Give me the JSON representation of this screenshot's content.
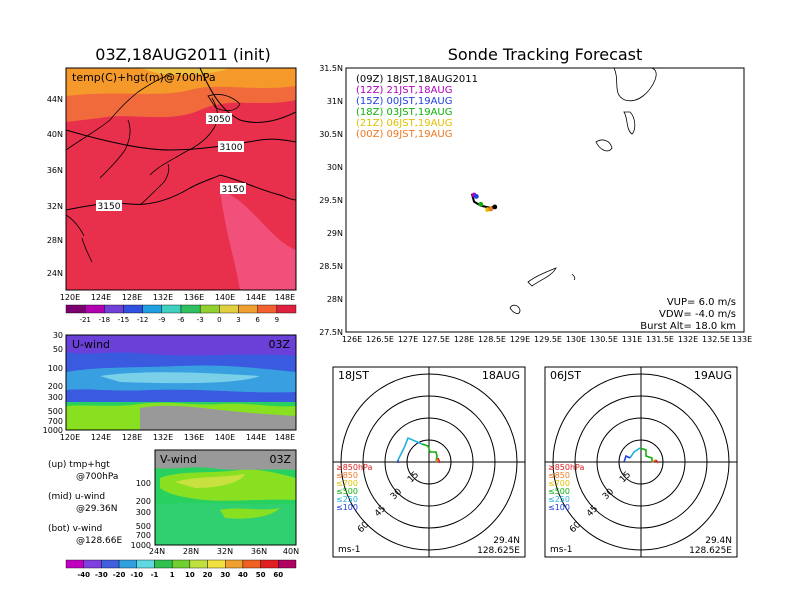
{
  "left_title": "03Z,18AUG2011 (init)",
  "right_title": "Sonde Tracking Forecast",
  "map_panel": {
    "label": "temp(C)+hgt(m)@700hPa",
    "contour_labels": [
      "3050",
      "3100",
      "3150",
      "3150"
    ],
    "x_ticks": [
      "120E",
      "124E",
      "128E",
      "132E",
      "136E",
      "140E",
      "144E",
      "148E"
    ],
    "y_ticks": [
      "24N",
      "28N",
      "32N",
      "36N",
      "40N",
      "44N"
    ],
    "colorbar_labels": [
      "-21",
      "-18",
      "-15",
      "-12",
      "-9",
      "-6",
      "-3",
      "0",
      "3",
      "6",
      "9"
    ],
    "colors": {
      "hot": "#e8304c",
      "warm": "#f06a3c",
      "orange": "#f59a2a",
      "yellow": "#f2c040"
    }
  },
  "uwind_panel": {
    "label": "U-wind",
    "time": "03Z",
    "y_ticks": [
      "30",
      "50",
      "100",
      "200",
      "300",
      "500",
      "700",
      "1000"
    ],
    "x_ticks": [
      "120E",
      "124E",
      "128E",
      "132E",
      "136E",
      "140E",
      "144E",
      "148E"
    ]
  },
  "vwind_panel": {
    "label": "V-wind",
    "time": "03Z",
    "y_ticks": [
      "100",
      "200",
      "300",
      "500",
      "700",
      "1000"
    ],
    "x_ticks": [
      "24N",
      "28N",
      "32N",
      "36N",
      "40N"
    ],
    "colorbar_labels": [
      "-40",
      "-30",
      "-20",
      "-10",
      "-1",
      "1",
      "10",
      "20",
      "30",
      "40",
      "50",
      "60"
    ]
  },
  "legend_notes": [
    {
      "line1": "(up) tmp+hgt",
      "line2": "@700hPa"
    },
    {
      "line1": "(mid) u-wind",
      "line2": "@29.36N"
    },
    {
      "line1": "(bot) v-wind",
      "line2": "@128.66E"
    }
  ],
  "track_panel": {
    "legend": [
      {
        "label": "(09Z)  18JST,18AUG2011",
        "color": "#000000"
      },
      {
        "label": "(12Z)  21JST,18AUG",
        "color": "#b000c0"
      },
      {
        "label": "(15Z)  00JST,19AUG",
        "color": "#2040e0"
      },
      {
        "label": "(18Z)  03JST,19AUG",
        "color": "#10b010"
      },
      {
        "label": "(21Z)  06JST,19AUG",
        "color": "#e0c000"
      },
      {
        "label": "(00Z)  09JST,19AUG",
        "color": "#f07820"
      }
    ],
    "x_ticks": [
      "126E",
      "126.5E",
      "127E",
      "127.5E",
      "128E",
      "128.5E",
      "129E",
      "129.5E",
      "130E",
      "130.5E",
      "131E",
      "131.5E",
      "132E",
      "132.5E",
      "133E"
    ],
    "y_ticks": [
      "27.5N",
      "28N",
      "28.5N",
      "29N",
      "29.5N",
      "30N",
      "30.5N",
      "31N",
      "31.5N"
    ],
    "info": [
      "VUP=  6.0  m/s",
      "VDW=  -4.0  m/s",
      "Burst Alt=  18.0  km"
    ]
  },
  "hodographs": [
    {
      "left": "18JST",
      "right": "18AUG",
      "lat": "29.4N",
      "lon": "128.625E",
      "unit": "ms-1",
      "ring_labels": [
        "15",
        "30",
        "45",
        "60"
      ],
      "levels": [
        {
          "label": "≥850hPa",
          "color": "#e02020"
        },
        {
          "label": "≤850",
          "color": "#f07820"
        },
        {
          "label": "≤700",
          "color": "#e0c000"
        },
        {
          "label": "≤500",
          "color": "#10b010"
        },
        {
          "label": "≤250",
          "color": "#20b0e0"
        },
        {
          "label": "≤100",
          "color": "#2040e0"
        }
      ]
    },
    {
      "left": "06JST",
      "right": "19AUG",
      "lat": "29.4N",
      "lon": "128.625E",
      "unit": "ms-1",
      "ring_labels": [
        "15",
        "30",
        "45",
        "60"
      ],
      "levels": [
        {
          "label": "≥850hPa",
          "color": "#e02020"
        },
        {
          "label": "≤850",
          "color": "#f07820"
        },
        {
          "label": "≤700",
          "color": "#e0c000"
        },
        {
          "label": "≤500",
          "color": "#10b010"
        },
        {
          "label": "≤250",
          "color": "#20b0e0"
        },
        {
          "label": "≤100",
          "color": "#2040e0"
        }
      ]
    }
  ]
}
